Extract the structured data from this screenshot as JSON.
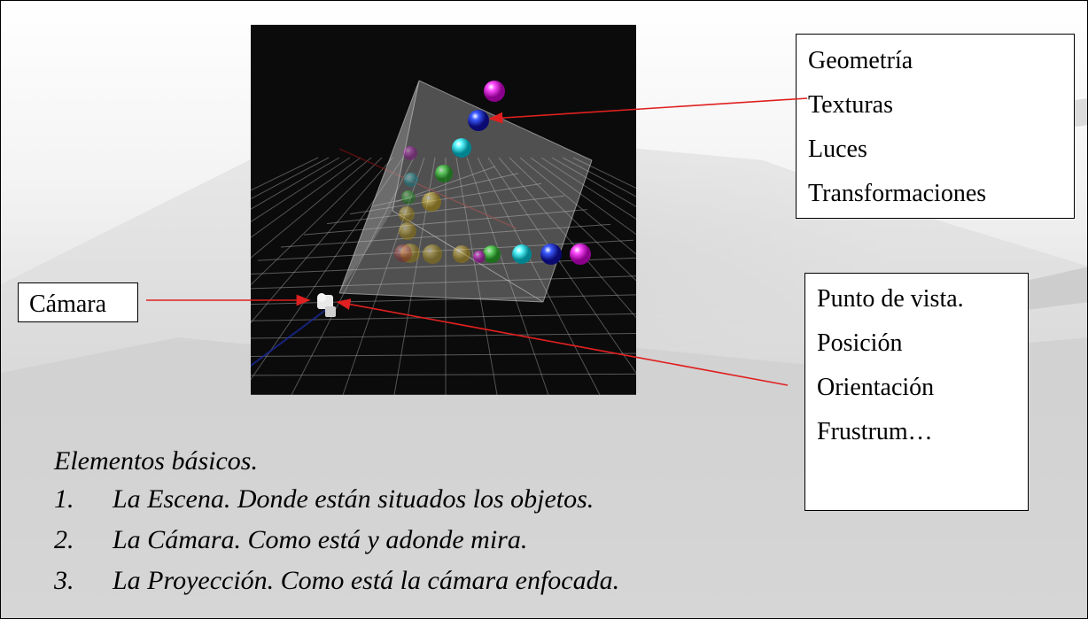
{
  "top_box": {
    "items": [
      "Geometría",
      "Texturas",
      "Luces",
      "Transformaciones"
    ]
  },
  "camera_label": "Cámara",
  "view_box": {
    "items": [
      "Punto de vista.",
      "Posición",
      "Orientación",
      "Frustrum…"
    ]
  },
  "text": {
    "title": "Elementos básicos.",
    "list": [
      {
        "num": "1.",
        "text": "La Escena. Donde están situados los objetos."
      },
      {
        "num": "2.",
        "text": "La Cámara. Como está y adonde mira."
      },
      {
        "num": "3.",
        "text": "La Proyección. Como está la cámara enfocada."
      }
    ]
  },
  "colors": {
    "arrow": "#e02020",
    "scene_bg": "#0b0b0b",
    "grid": "#9a9a9a"
  }
}
